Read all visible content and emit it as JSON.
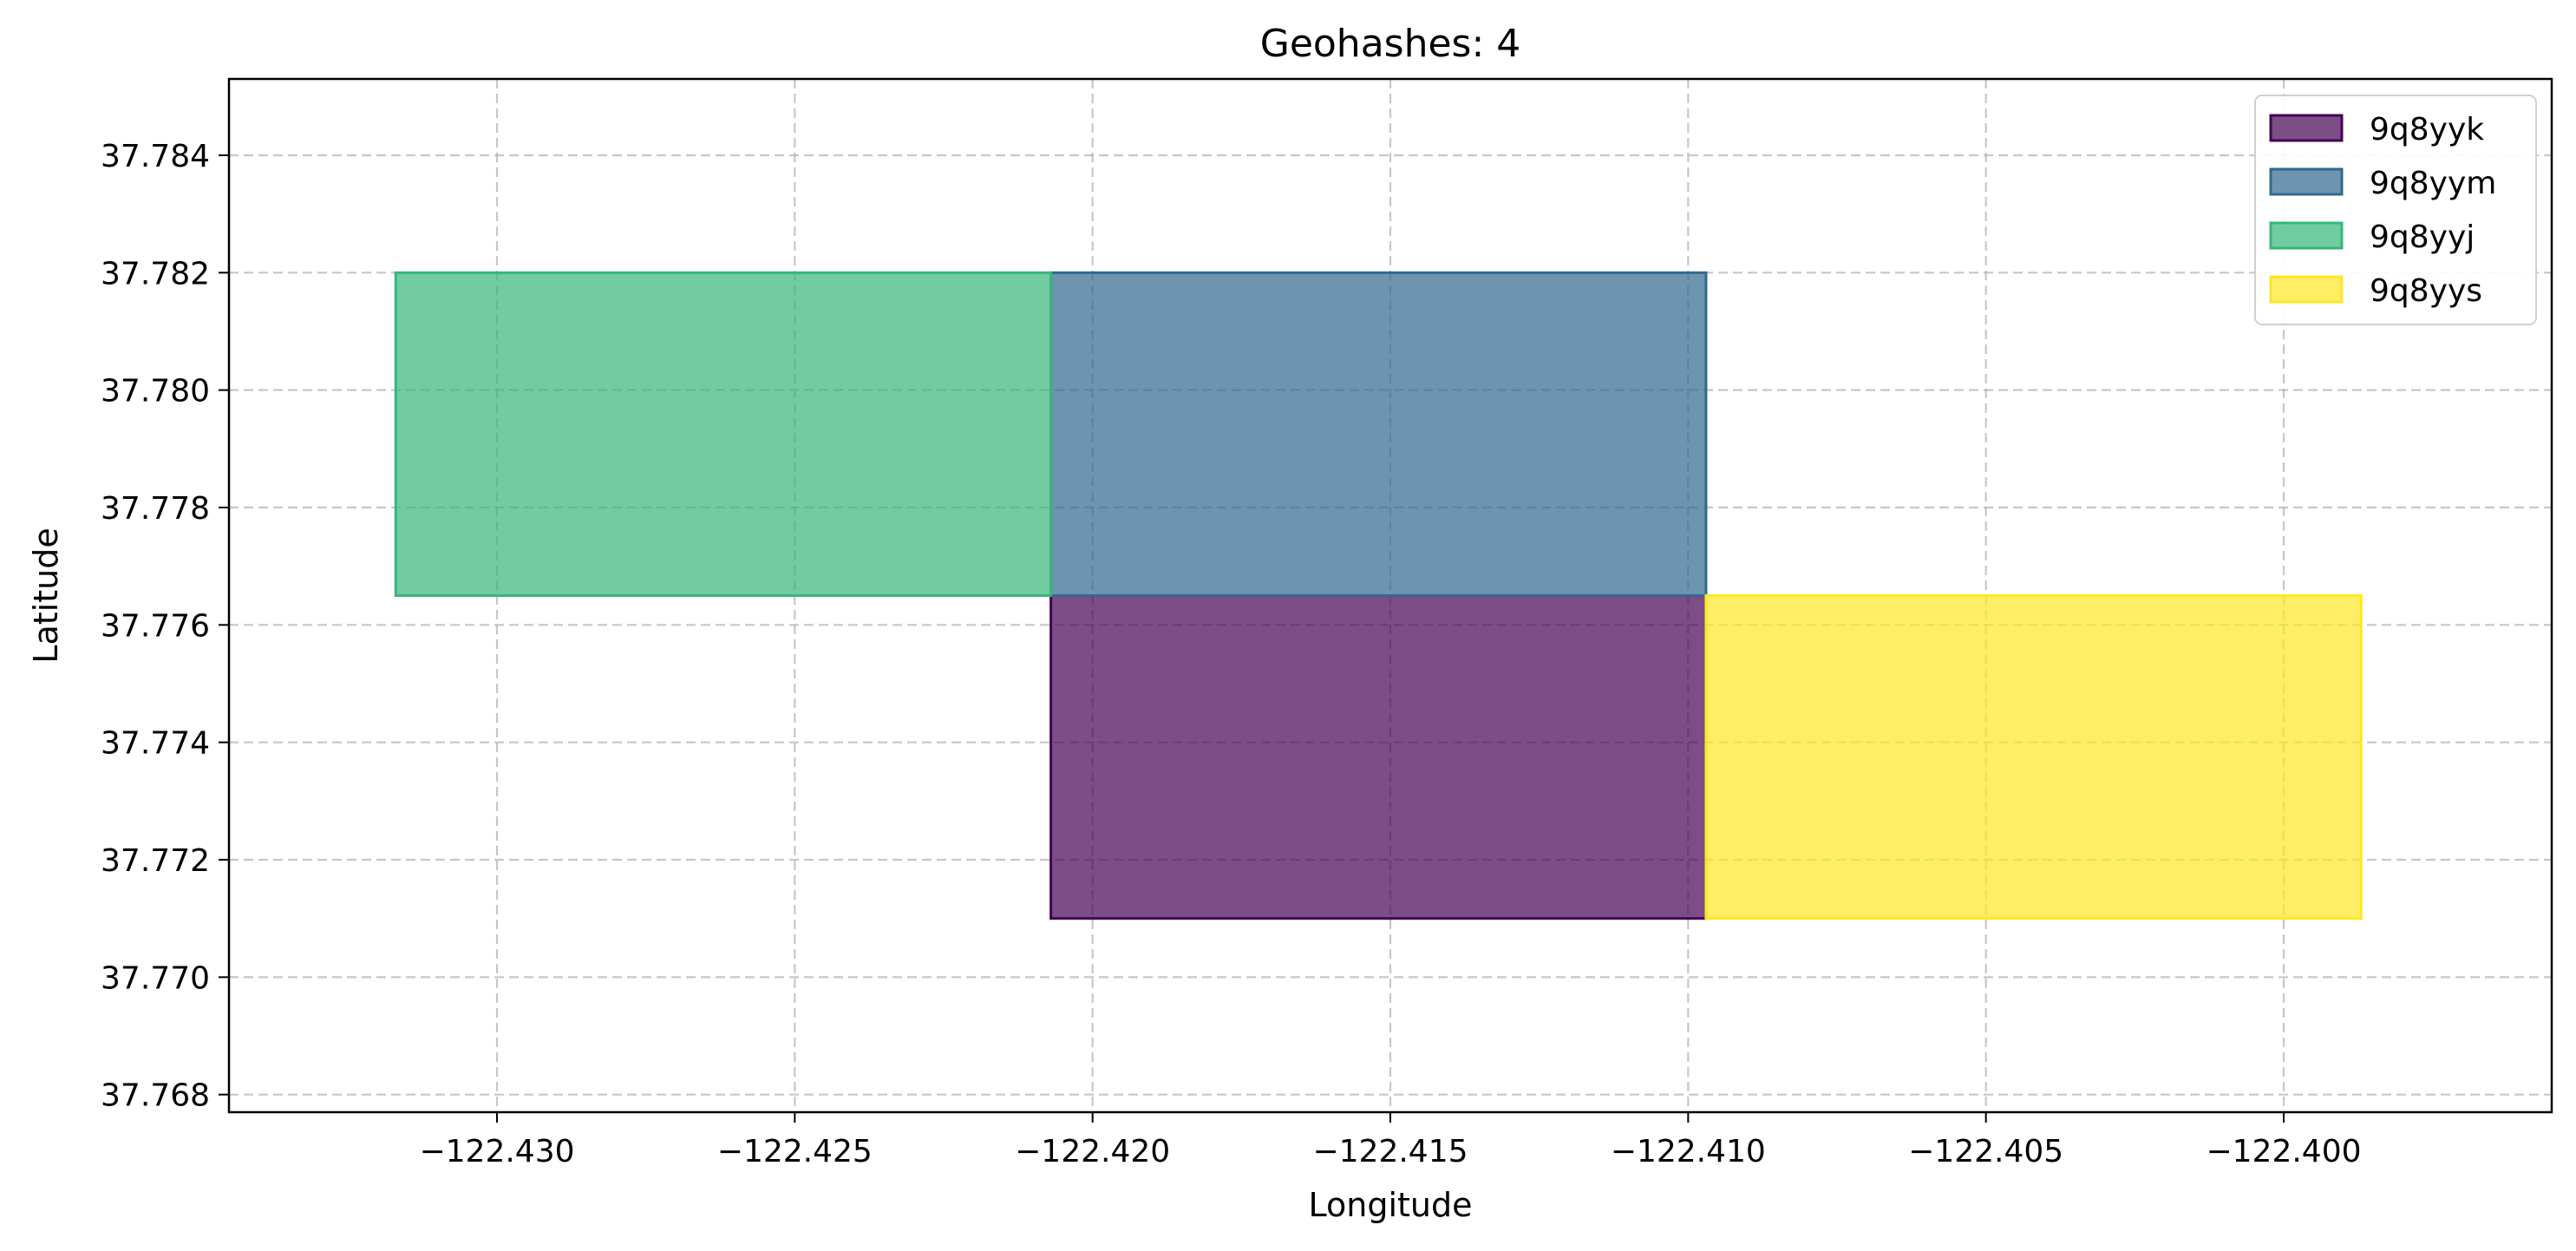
{
  "chart_data": {
    "type": "geohash-map",
    "title": "Geohashes: 4",
    "xlabel": "Longitude",
    "ylabel": "Latitude",
    "xlim": [
      -122.4345,
      -122.3955
    ],
    "ylim": [
      37.7677,
      37.7853
    ],
    "xticks": [
      -122.43,
      -122.425,
      -122.42,
      -122.415,
      -122.41,
      -122.405,
      -122.4
    ],
    "xtick_labels": [
      "−122.430",
      "−122.425",
      "−122.420",
      "−122.415",
      "−122.410",
      "−122.405",
      "−122.400"
    ],
    "yticks": [
      37.768,
      37.77,
      37.772,
      37.774,
      37.776,
      37.778,
      37.78,
      37.782,
      37.784
    ],
    "ytick_labels": [
      "37.768",
      "37.770",
      "37.772",
      "37.774",
      "37.776",
      "37.778",
      "37.780",
      "37.782",
      "37.784"
    ],
    "grid": true,
    "legend_position": "top-right",
    "series": [
      {
        "name": "9q8yyk",
        "lon_min": -122.4207,
        "lon_max": -122.4097,
        "lat_min": 37.771,
        "lat_max": 37.7765,
        "color": "#440154"
      },
      {
        "name": "9q8yym",
        "lon_min": -122.4207,
        "lon_max": -122.4097,
        "lat_min": 37.7765,
        "lat_max": 37.782,
        "color": "#31688e"
      },
      {
        "name": "9q8yyj",
        "lon_min": -122.4317,
        "lon_max": -122.4207,
        "lat_min": 37.7765,
        "lat_max": 37.782,
        "color": "#35b779"
      },
      {
        "name": "9q8yys",
        "lon_min": -122.4097,
        "lon_max": -122.3987,
        "lat_min": 37.771,
        "lat_max": 37.7765,
        "color": "#fde725"
      }
    ]
  }
}
